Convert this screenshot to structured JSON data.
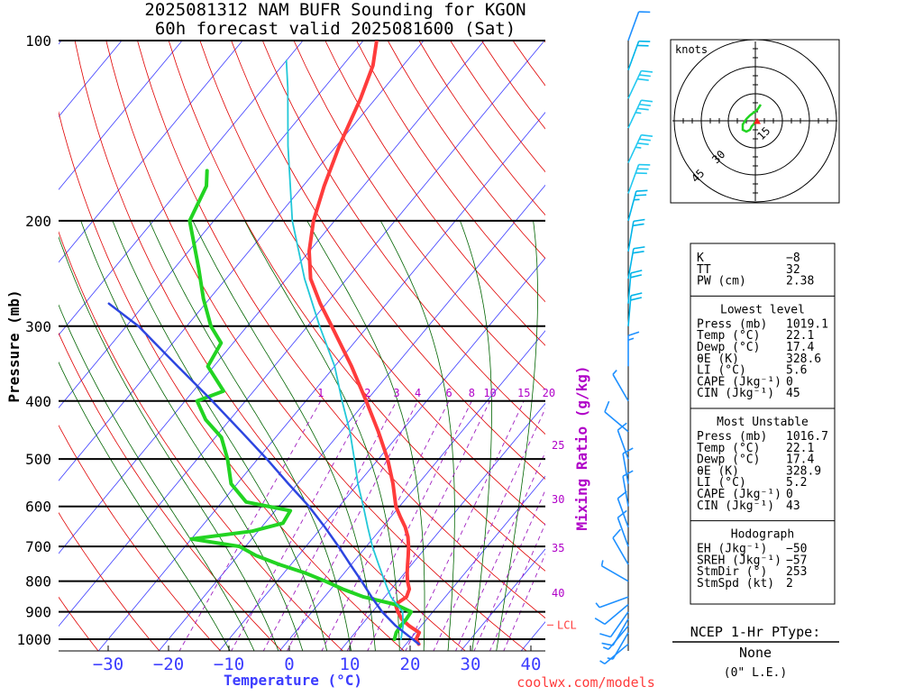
{
  "title": {
    "line1": "2025081312 NAM BUFR Sounding for KGON",
    "line2": "60h forecast valid 2025081600 (Sat)"
  },
  "axes": {
    "ylabel": "Pressure (mb)",
    "xlabel": "Temperature (°C)",
    "mixing_label": "Mixing Ratio (g/kg)",
    "lcl_label": "LCL",
    "credit": "coolwx.com/models"
  },
  "colors": {
    "temperature": "#ff3c3c",
    "dewpoint": "#22d422",
    "wetbulb": "#22c8d8",
    "parcel": "#2d46e0",
    "isotherm": "#3c3cff",
    "dry_adiabat": "#e00000",
    "moist_adiabat": "#006400",
    "mixing_ratio": "#a020c0",
    "text_blue": "#3c3cff",
    "text_purple": "#b000c8",
    "lcl": "#ff3c3c",
    "hodo_line": "#22d422",
    "hodo_point": "#ff2020"
  },
  "chart_data": {
    "type": "line",
    "title": "2025081312 NAM BUFR Sounding for KGON 60h forecast valid 2025081600 (Sat)",
    "xlabel": "Temperature (°C)",
    "ylabel": "Pressure (mb)",
    "y_scale": "log",
    "ylim": [
      1050,
      100
    ],
    "xlim": [
      -40,
      40
    ],
    "skew": true,
    "x_ticks": [
      "−30",
      "−20",
      "−10",
      "0",
      "10",
      "20",
      "30",
      "40"
    ],
    "y_ticks": [
      "100",
      "200",
      "300",
      "400",
      "500",
      "600",
      "700",
      "800",
      "900",
      "1000"
    ],
    "mixing_ratio_labels_top": [
      "1",
      "2",
      "3",
      "4",
      "6",
      "8",
      "10",
      "15",
      "20"
    ],
    "mixing_ratio_labels_side": [
      "25",
      "30",
      "35",
      "40"
    ],
    "series": [
      {
        "name": "Temperature",
        "points": [
          {
            "p": 1019,
            "t": 22.1
          },
          {
            "p": 1000,
            "t": 21.0
          },
          {
            "p": 975,
            "t": 20.6
          },
          {
            "p": 950,
            "t": 18.0
          },
          {
            "p": 925,
            "t": 15.8
          },
          {
            "p": 900,
            "t": 14.2
          },
          {
            "p": 875,
            "t": 12.8
          },
          {
            "p": 850,
            "t": 13.6
          },
          {
            "p": 825,
            "t": 13.0
          },
          {
            "p": 800,
            "t": 11.6
          },
          {
            "p": 775,
            "t": 10.4
          },
          {
            "p": 750,
            "t": 9.3
          },
          {
            "p": 725,
            "t": 8.2
          },
          {
            "p": 700,
            "t": 7.0
          },
          {
            "p": 675,
            "t": 5.6
          },
          {
            "p": 650,
            "t": 3.8
          },
          {
            "p": 625,
            "t": 1.6
          },
          {
            "p": 600,
            "t": -0.6
          },
          {
            "p": 550,
            "t": -4.2
          },
          {
            "p": 500,
            "t": -8.5
          },
          {
            "p": 450,
            "t": -13.8
          },
          {
            "p": 400,
            "t": -20.0
          },
          {
            "p": 350,
            "t": -27.2
          },
          {
            "p": 300,
            "t": -36.0
          },
          {
            "p": 275,
            "t": -41.0
          },
          {
            "p": 250,
            "t": -46.0
          },
          {
            "p": 225,
            "t": -50.0
          },
          {
            "p": 200,
            "t": -53.5
          },
          {
            "p": 175,
            "t": -56.5
          },
          {
            "p": 150,
            "t": -59.5
          },
          {
            "p": 125,
            "t": -62.5
          },
          {
            "p": 110,
            "t": -65.0
          },
          {
            "p": 100,
            "t": -67.8
          }
        ]
      },
      {
        "name": "Dewpoint",
        "points": [
          {
            "p": 1000,
            "t": 17.4
          },
          {
            "p": 975,
            "t": 16.8
          },
          {
            "p": 950,
            "t": 16.6
          },
          {
            "p": 925,
            "t": 16.6
          },
          {
            "p": 900,
            "t": 16.4
          },
          {
            "p": 875,
            "t": 12.8
          },
          {
            "p": 850,
            "t": 6.5
          },
          {
            "p": 825,
            "t": 2.0
          },
          {
            "p": 800,
            "t": -2.0
          },
          {
            "p": 775,
            "t": -6.5
          },
          {
            "p": 750,
            "t": -12.0
          },
          {
            "p": 725,
            "t": -17.0
          },
          {
            "p": 700,
            "t": -21.0
          },
          {
            "p": 680,
            "t": -30.0
          },
          {
            "p": 660,
            "t": -21.0
          },
          {
            "p": 640,
            "t": -17.0
          },
          {
            "p": 610,
            "t": -17.5
          },
          {
            "p": 590,
            "t": -26.0
          },
          {
            "p": 550,
            "t": -31.0
          },
          {
            "p": 500,
            "t": -35.0
          },
          {
            "p": 460,
            "t": -39.0
          },
          {
            "p": 430,
            "t": -44.0
          },
          {
            "p": 400,
            "t": -48.0
          },
          {
            "p": 385,
            "t": -45.0
          },
          {
            "p": 350,
            "t": -51.0
          },
          {
            "p": 320,
            "t": -52.0
          },
          {
            "p": 300,
            "t": -56.0
          },
          {
            "p": 270,
            "t": -61.0
          },
          {
            "p": 240,
            "t": -66.0
          },
          {
            "p": 200,
            "t": -74.0
          },
          {
            "p": 175,
            "t": -76.0
          },
          {
            "p": 165,
            "t": -78.0
          }
        ]
      },
      {
        "name": "Wet-bulb",
        "points": [
          {
            "p": 1000,
            "t": 18.5
          },
          {
            "p": 950,
            "t": 17.0
          },
          {
            "p": 900,
            "t": 15.0
          },
          {
            "p": 850,
            "t": 11.0
          },
          {
            "p": 800,
            "t": 7.8
          },
          {
            "p": 750,
            "t": 4.5
          },
          {
            "p": 700,
            "t": 1.0
          },
          {
            "p": 650,
            "t": -2.4
          },
          {
            "p": 600,
            "t": -6.0
          },
          {
            "p": 550,
            "t": -10.0
          },
          {
            "p": 500,
            "t": -14.0
          },
          {
            "p": 450,
            "t": -18.5
          },
          {
            "p": 400,
            "t": -24.0
          },
          {
            "p": 350,
            "t": -30.0
          },
          {
            "p": 300,
            "t": -38.0
          },
          {
            "p": 250,
            "t": -47.0
          },
          {
            "p": 200,
            "t": -57.0
          },
          {
            "p": 150,
            "t": -68.0
          },
          {
            "p": 120,
            "t": -76.0
          },
          {
            "p": 108,
            "t": -80.0
          }
        ]
      },
      {
        "name": "Parcel",
        "points": [
          {
            "p": 1019,
            "t": 22.1
          },
          {
            "p": 950,
            "t": 15.8
          },
          {
            "p": 900,
            "t": 11.6
          },
          {
            "p": 850,
            "t": 7.8
          },
          {
            "p": 800,
            "t": 4.0
          },
          {
            "p": 750,
            "t": -0.2
          },
          {
            "p": 700,
            "t": -4.6
          },
          {
            "p": 650,
            "t": -9.5
          },
          {
            "p": 600,
            "t": -15.0
          },
          {
            "p": 550,
            "t": -21.5
          },
          {
            "p": 500,
            "t": -28.5
          },
          {
            "p": 450,
            "t": -36.5
          },
          {
            "p": 400,
            "t": -45.5
          },
          {
            "p": 350,
            "t": -56.0
          },
          {
            "p": 300,
            "t": -68.0
          },
          {
            "p": 275,
            "t": -76.0
          }
        ]
      }
    ],
    "lcl_pressure": 947,
    "wind_barbs": {
      "units": "knots",
      "levels": [
        {
          "p": 1019,
          "dir": 230,
          "spd": 5
        },
        {
          "p": 975,
          "dir": 210,
          "spd": 5
        },
        {
          "p": 950,
          "dir": 220,
          "spd": 5
        },
        {
          "p": 925,
          "dir": 210,
          "spd": 10
        },
        {
          "p": 900,
          "dir": 215,
          "spd": 10
        },
        {
          "p": 875,
          "dir": 230,
          "spd": 10
        },
        {
          "p": 850,
          "dir": 250,
          "spd": 5
        },
        {
          "p": 800,
          "dir": 300,
          "spd": 5
        },
        {
          "p": 750,
          "dir": 330,
          "spd": 10
        },
        {
          "p": 700,
          "dir": 340,
          "spd": 10
        },
        {
          "p": 650,
          "dir": 340,
          "spd": 10
        },
        {
          "p": 600,
          "dir": 350,
          "spd": 10
        },
        {
          "p": 550,
          "dir": 350,
          "spd": 10
        },
        {
          "p": 500,
          "dir": 340,
          "spd": 10
        },
        {
          "p": 450,
          "dir": 310,
          "spd": 10
        },
        {
          "p": 400,
          "dir": 330,
          "spd": 5
        },
        {
          "p": 350,
          "dir": 0,
          "spd": 15
        },
        {
          "p": 300,
          "dir": 5,
          "spd": 20
        },
        {
          "p": 275,
          "dir": 5,
          "spd": 20
        },
        {
          "p": 250,
          "dir": 10,
          "spd": 20
        },
        {
          "p": 225,
          "dir": 10,
          "spd": 20
        },
        {
          "p": 200,
          "dir": 15,
          "spd": 25
        },
        {
          "p": 180,
          "dir": 20,
          "spd": 30
        },
        {
          "p": 160,
          "dir": 25,
          "spd": 35
        },
        {
          "p": 140,
          "dir": 25,
          "spd": 35
        },
        {
          "p": 125,
          "dir": 25,
          "spd": 30
        },
        {
          "p": 112,
          "dir": 20,
          "spd": 20
        },
        {
          "p": 100,
          "dir": 20,
          "spd": 10
        }
      ]
    },
    "hodograph": {
      "units": "knots",
      "ring_labels": [
        "15",
        "30",
        "45"
      ],
      "trace": [
        [
          3,
          -9
        ],
        [
          1,
          -6
        ],
        [
          -3,
          -3
        ],
        [
          -5,
          -1
        ],
        [
          -7,
          2
        ],
        [
          -7,
          5
        ],
        [
          -5,
          6
        ],
        [
          -3,
          5
        ],
        [
          -2,
          3
        ],
        [
          -1,
          2
        ],
        [
          0,
          0
        ]
      ],
      "storm_motion": [
        2,
        0.5
      ]
    }
  },
  "stats_box": {
    "rows_top": [
      {
        "label": "K",
        "value": "−8"
      },
      {
        "label": "TT",
        "value": "32"
      },
      {
        "label": "PW (cm)",
        "value": "2.38"
      }
    ],
    "lowest_title": "Lowest level",
    "lowest": [
      {
        "label": "Press (mb)",
        "value": "1019.1"
      },
      {
        "label": "Temp (°C)",
        "value": "22.1"
      },
      {
        "label": "Dewp (°C)",
        "value": "17.4"
      },
      {
        "label": "θE (K)",
        "value": "328.6"
      },
      {
        "label": "LI (°C)",
        "value": "5.6"
      },
      {
        "label": "CAPE (Jkg⁻¹)",
        "value": "0"
      },
      {
        "label": "CIN (Jkg⁻¹)",
        "value": "45"
      }
    ],
    "unstable_title": "Most Unstable",
    "unstable": [
      {
        "label": "Press (mb)",
        "value": "1016.7"
      },
      {
        "label": "Temp (°C)",
        "value": "22.1"
      },
      {
        "label": "Dewp (°C)",
        "value": "17.4"
      },
      {
        "label": "θE (K)",
        "value": "328.9"
      },
      {
        "label": "LI (°C)",
        "value": "5.2"
      },
      {
        "label": "CAPE (Jkg⁻¹)",
        "value": "0"
      },
      {
        "label": "CIN (Jkg⁻¹)",
        "value": "43"
      }
    ],
    "hodo_title": "Hodograph",
    "hodo": [
      {
        "label": "EH (Jkg⁻¹)",
        "value": "−50"
      },
      {
        "label": "SREH (Jkg⁻¹)",
        "value": "−57"
      },
      {
        "label": "StmDir (°)",
        "value": "253"
      },
      {
        "label": "StmSpd (kt)",
        "value": "2"
      }
    ]
  },
  "ptype": {
    "title": "NCEP 1-Hr PType:",
    "value": "None",
    "note": "(0\" L.E.)"
  }
}
